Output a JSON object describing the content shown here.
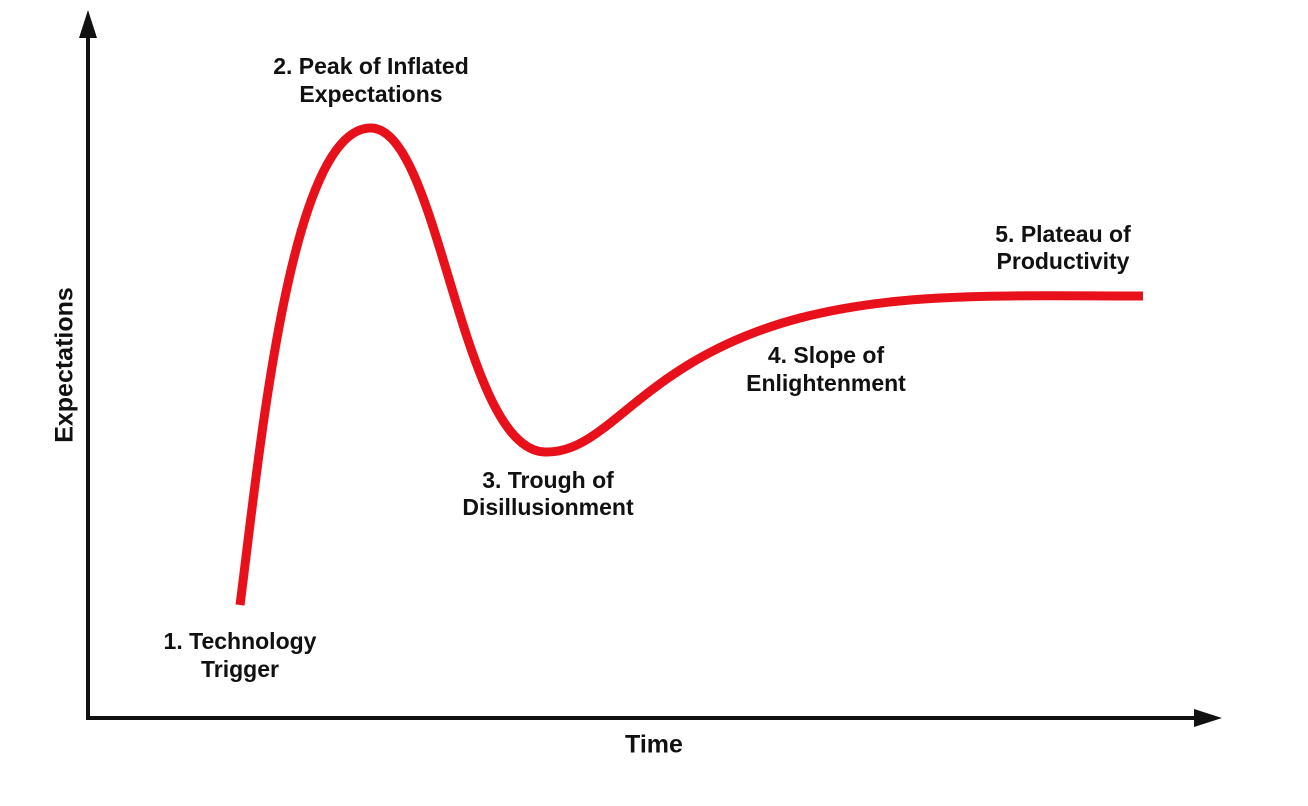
{
  "axes": {
    "x_label": "Time",
    "y_label": "Expectations"
  },
  "phases": [
    {
      "lines": [
        "1. Technology",
        "Trigger"
      ]
    },
    {
      "lines": [
        "2. Peak of Inflated",
        "Expectations"
      ]
    },
    {
      "lines": [
        "3. Trough of",
        "Disillusionment"
      ]
    },
    {
      "lines": [
        "4. Slope of",
        "Enlightenment"
      ]
    },
    {
      "lines": [
        "5. Plateau of",
        "Productivity"
      ]
    }
  ]
}
